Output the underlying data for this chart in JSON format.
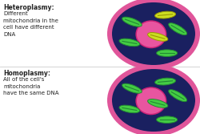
{
  "background_color": "#ffffff",
  "cell_outer_color": "#e0559a",
  "cell_inner_color": "#1a2060",
  "nucleus_color": "#e855a0",
  "nucleus_border_color": "#cc2277",
  "mito_green_color": "#44cc44",
  "mito_yellow_color": "#ccdd22",
  "mito_border_green": "#228833",
  "mito_border_yellow": "#999900",
  "text_color": "#222222",
  "divider_color": "#cccccc",
  "title1": "Heteroplasmy:",
  "body1": "Different\nmitochondria in the\ncell have different\nDNA",
  "title2": "Homoplasmy:",
  "body2": "All of the cell's\nmitochondria\nhave the same DNA"
}
